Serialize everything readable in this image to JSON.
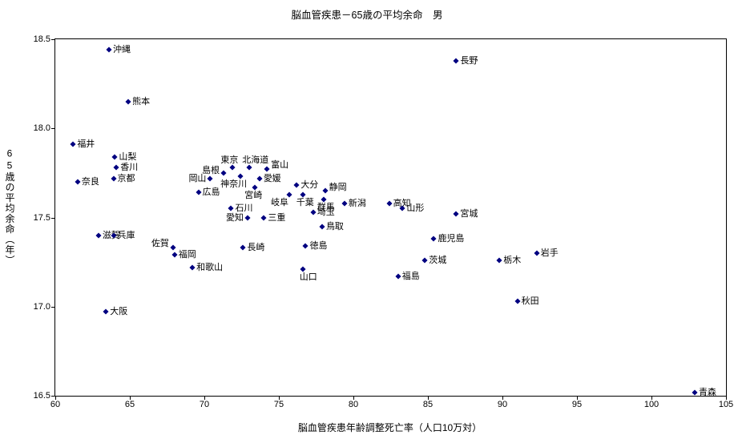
{
  "chart_data": {
    "type": "scatter",
    "title": "脳血管疾患－65歳の平均余命　男",
    "xlabel": "脳血管疾患年齢調整死亡率（人口10万対）",
    "ylabel": "65歳の平均余命（年）",
    "xlim": [
      60,
      105
    ],
    "ylim": [
      16.5,
      18.5
    ],
    "xticks": [
      "60",
      "65",
      "70",
      "75",
      "80",
      "85",
      "90",
      "95",
      "100",
      "105"
    ],
    "yticks": [
      "16.5",
      "17.0",
      "17.5",
      "18.0",
      "18.5"
    ],
    "grid": false,
    "legend": false,
    "marker_color": "#000080",
    "marker_shape": "diamond",
    "points": [
      {
        "name": "沖縄",
        "x": 63.6,
        "y": 18.44,
        "side": "right"
      },
      {
        "name": "長野",
        "x": 86.9,
        "y": 18.38,
        "side": "right"
      },
      {
        "name": "熊本",
        "x": 64.9,
        "y": 18.15,
        "side": "right"
      },
      {
        "name": "福井",
        "x": 61.2,
        "y": 17.91,
        "side": "right"
      },
      {
        "name": "山梨",
        "x": 64.0,
        "y": 17.84,
        "side": "right"
      },
      {
        "name": "香川",
        "x": 64.1,
        "y": 17.78,
        "side": "right"
      },
      {
        "name": "京都",
        "x": 63.9,
        "y": 17.72,
        "side": "right"
      },
      {
        "name": "奈良",
        "x": 61.5,
        "y": 17.7,
        "side": "right"
      },
      {
        "name": "岡山",
        "x": 70.4,
        "y": 17.72,
        "side": "left"
      },
      {
        "name": "島根",
        "x": 71.3,
        "y": 17.75,
        "side": "left",
        "dy": -3
      },
      {
        "name": "東京",
        "x": 71.9,
        "y": 17.78,
        "side": "above",
        "dx": -4
      },
      {
        "name": "北海道",
        "x": 73.0,
        "y": 17.78,
        "side": "above",
        "dx": 8
      },
      {
        "name": "富山",
        "x": 74.2,
        "y": 17.77,
        "side": "right",
        "dy": -5
      },
      {
        "name": "神奈川",
        "x": 72.4,
        "y": 17.73,
        "side": "below",
        "dx": -8
      },
      {
        "name": "愛媛",
        "x": 73.7,
        "y": 17.72,
        "side": "right"
      },
      {
        "name": "宮崎",
        "x": 73.4,
        "y": 17.67,
        "side": "below",
        "dx": -2
      },
      {
        "name": "広島",
        "x": 69.6,
        "y": 17.64,
        "side": "right"
      },
      {
        "name": "大分",
        "x": 76.2,
        "y": 17.68,
        "side": "right"
      },
      {
        "name": "岐阜",
        "x": 75.7,
        "y": 17.63,
        "side": "below",
        "dx": -12
      },
      {
        "name": "千葉",
        "x": 76.6,
        "y": 17.63,
        "side": "below",
        "dx": 3
      },
      {
        "name": "静岡",
        "x": 78.1,
        "y": 17.65,
        "side": "right",
        "dy": -4
      },
      {
        "name": "群馬",
        "x": 78.0,
        "y": 17.6,
        "side": "below",
        "dx": 3
      },
      {
        "name": "新潟",
        "x": 79.4,
        "y": 17.58,
        "side": "right"
      },
      {
        "name": "高知",
        "x": 82.4,
        "y": 17.58,
        "side": "right"
      },
      {
        "name": "山形",
        "x": 83.3,
        "y": 17.55,
        "side": "right"
      },
      {
        "name": "宮城",
        "x": 86.9,
        "y": 17.52,
        "side": "right"
      },
      {
        "name": "石川",
        "x": 71.8,
        "y": 17.55,
        "side": "right"
      },
      {
        "name": "愛知",
        "x": 72.9,
        "y": 17.5,
        "side": "left"
      },
      {
        "name": "三重",
        "x": 74.0,
        "y": 17.5,
        "side": "right"
      },
      {
        "name": "埼玉",
        "x": 77.3,
        "y": 17.53,
        "side": "right"
      },
      {
        "name": "鳥取",
        "x": 77.9,
        "y": 17.45,
        "side": "right"
      },
      {
        "name": "滋賀",
        "x": 62.9,
        "y": 17.4,
        "side": "right"
      },
      {
        "name": "兵庫",
        "x": 63.9,
        "y": 17.4,
        "side": "right"
      },
      {
        "name": "鹿児島",
        "x": 85.4,
        "y": 17.38,
        "side": "right"
      },
      {
        "name": "佐賀",
        "x": 67.9,
        "y": 17.33,
        "side": "left",
        "dy": -5
      },
      {
        "name": "福岡",
        "x": 68.0,
        "y": 17.29,
        "side": "right"
      },
      {
        "name": "和歌山",
        "x": 69.2,
        "y": 17.22,
        "side": "right"
      },
      {
        "name": "長崎",
        "x": 72.6,
        "y": 17.33,
        "side": "right"
      },
      {
        "name": "徳島",
        "x": 76.8,
        "y": 17.34,
        "side": "right"
      },
      {
        "name": "山口",
        "x": 76.6,
        "y": 17.21,
        "side": "below",
        "dx": 7
      },
      {
        "name": "茨城",
        "x": 84.8,
        "y": 17.26,
        "side": "right"
      },
      {
        "name": "福島",
        "x": 83.0,
        "y": 17.17,
        "side": "right"
      },
      {
        "name": "栃木",
        "x": 89.8,
        "y": 17.26,
        "side": "right"
      },
      {
        "name": "岩手",
        "x": 92.3,
        "y": 17.3,
        "side": "right"
      },
      {
        "name": "秋田",
        "x": 91.0,
        "y": 17.03,
        "side": "right"
      },
      {
        "name": "大阪",
        "x": 63.4,
        "y": 16.97,
        "side": "right"
      },
      {
        "name": "青森",
        "x": 102.9,
        "y": 16.52,
        "side": "right"
      }
    ]
  }
}
